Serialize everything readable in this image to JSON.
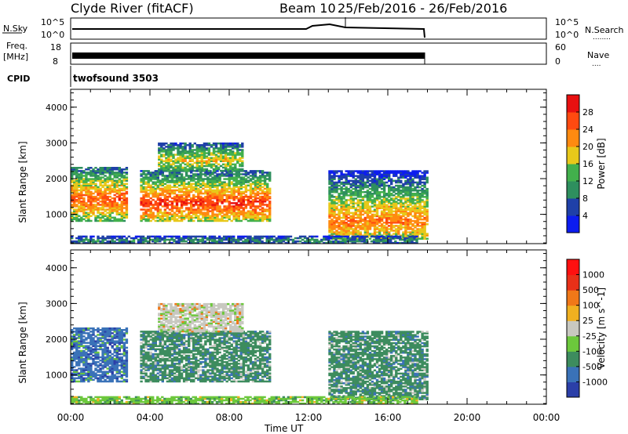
{
  "header": {
    "station": "Clyde River (fitACF)",
    "beam": "Beam 10",
    "date_range": "25/Feb/2016 - 26/Feb/2016"
  },
  "strips": {
    "nsky": {
      "left_label": "N.Sky",
      "left_ticks": [
        "10^5",
        "10^0"
      ],
      "right_ticks": [
        "10^5",
        "10^0"
      ],
      "right_label": "N.Search",
      "right_dots": "........"
    },
    "freq": {
      "left_label_1": "Freq.",
      "left_label_2": "[MHz]",
      "left_ticks": [
        "18",
        "8"
      ],
      "right_ticks": [
        "60",
        "0"
      ],
      "right_label": "Nave",
      "right_dots": "...."
    },
    "cpid": {
      "left_label": "CPID",
      "program": "twofsound 3503"
    }
  },
  "colors": {
    "power_scale": [
      "#0c1cf0",
      "#1f40a8",
      "#2e8f5e",
      "#42b04c",
      "#e8c81a",
      "#ff8a10",
      "#ff4a10",
      "#e81010"
    ],
    "velocity_scale": [
      "#2b3fa8",
      "#3a72b8",
      "#3d8c5e",
      "#6cc83c",
      "#c8c8c0",
      "#f0b020",
      "#f07818",
      "#e83018",
      "#ff1010"
    ]
  },
  "chart_data": [
    {
      "type": "heatmap",
      "name": "power_panel",
      "ylabel": "Slant Range [km]",
      "xlabel": "",
      "x_ticks": [
        "00:00",
        "04:00",
        "08:00",
        "12:00",
        "16:00",
        "20:00",
        "00:00"
      ],
      "xlim_hours": [
        0,
        24
      ],
      "ylim_km": [
        180,
        4500
      ],
      "y_ticks": [
        "1000",
        "2000",
        "3000",
        "4000"
      ],
      "y_tick_values": [
        1000,
        2000,
        3000,
        4000
      ],
      "colorbar": {
        "label": "Power [dB]",
        "ticks": [
          "4",
          "8",
          "12",
          "16",
          "20",
          "24",
          "28"
        ],
        "range": [
          0,
          30
        ]
      },
      "regions": [
        {
          "t0": 0.0,
          "t1": 2.8,
          "r0": 800,
          "r1": 2300,
          "core": 1400,
          "cval": 24
        },
        {
          "t0": 3.5,
          "t1": 10.0,
          "r0": 800,
          "r1": 2200,
          "core": 1300,
          "cval": 26
        },
        {
          "t0": 4.4,
          "t1": 8.7,
          "r0": 2200,
          "r1": 3000,
          "core": 2500,
          "cval": 18
        },
        {
          "t0": 13.0,
          "t1": 18.0,
          "r0": 300,
          "r1": 2200,
          "core": 800,
          "cval": 22
        },
        {
          "t0": 0.0,
          "t1": 17.5,
          "r0": 180,
          "r1": 400,
          "core": 250,
          "cval": 10
        }
      ]
    },
    {
      "type": "heatmap",
      "name": "velocity_panel",
      "ylabel": "Slant Range [km]",
      "xlabel": "Time UT",
      "x_ticks": [
        "00:00",
        "04:00",
        "08:00",
        "12:00",
        "16:00",
        "20:00",
        "00:00"
      ],
      "xlim_hours": [
        0,
        24
      ],
      "ylim_km": [
        180,
        4500
      ],
      "y_ticks": [
        "1000",
        "2000",
        "3000",
        "4000"
      ],
      "y_tick_values": [
        1000,
        2000,
        3000,
        4000
      ],
      "colorbar": {
        "label": "Velocity [m s^-1]",
        "ticks": [
          "1000",
          "500",
          "100",
          "25",
          "-25",
          "-100",
          "-500",
          "-1000"
        ]
      },
      "regions": [
        {
          "t0": 0.0,
          "t1": 2.8,
          "r0": 800,
          "r1": 2300,
          "vclass": 1
        },
        {
          "t0": 3.5,
          "t1": 10.0,
          "r0": 800,
          "r1": 2200,
          "vclass": 2
        },
        {
          "t0": 4.4,
          "t1": 8.7,
          "r0": 2200,
          "r1": 3000,
          "vclass": 4
        },
        {
          "t0": 13.0,
          "t1": 18.0,
          "r0": 300,
          "r1": 2200,
          "vclass": 2
        },
        {
          "t0": 0.0,
          "t1": 17.5,
          "r0": 180,
          "r1": 400,
          "vclass": 3
        }
      ]
    }
  ]
}
